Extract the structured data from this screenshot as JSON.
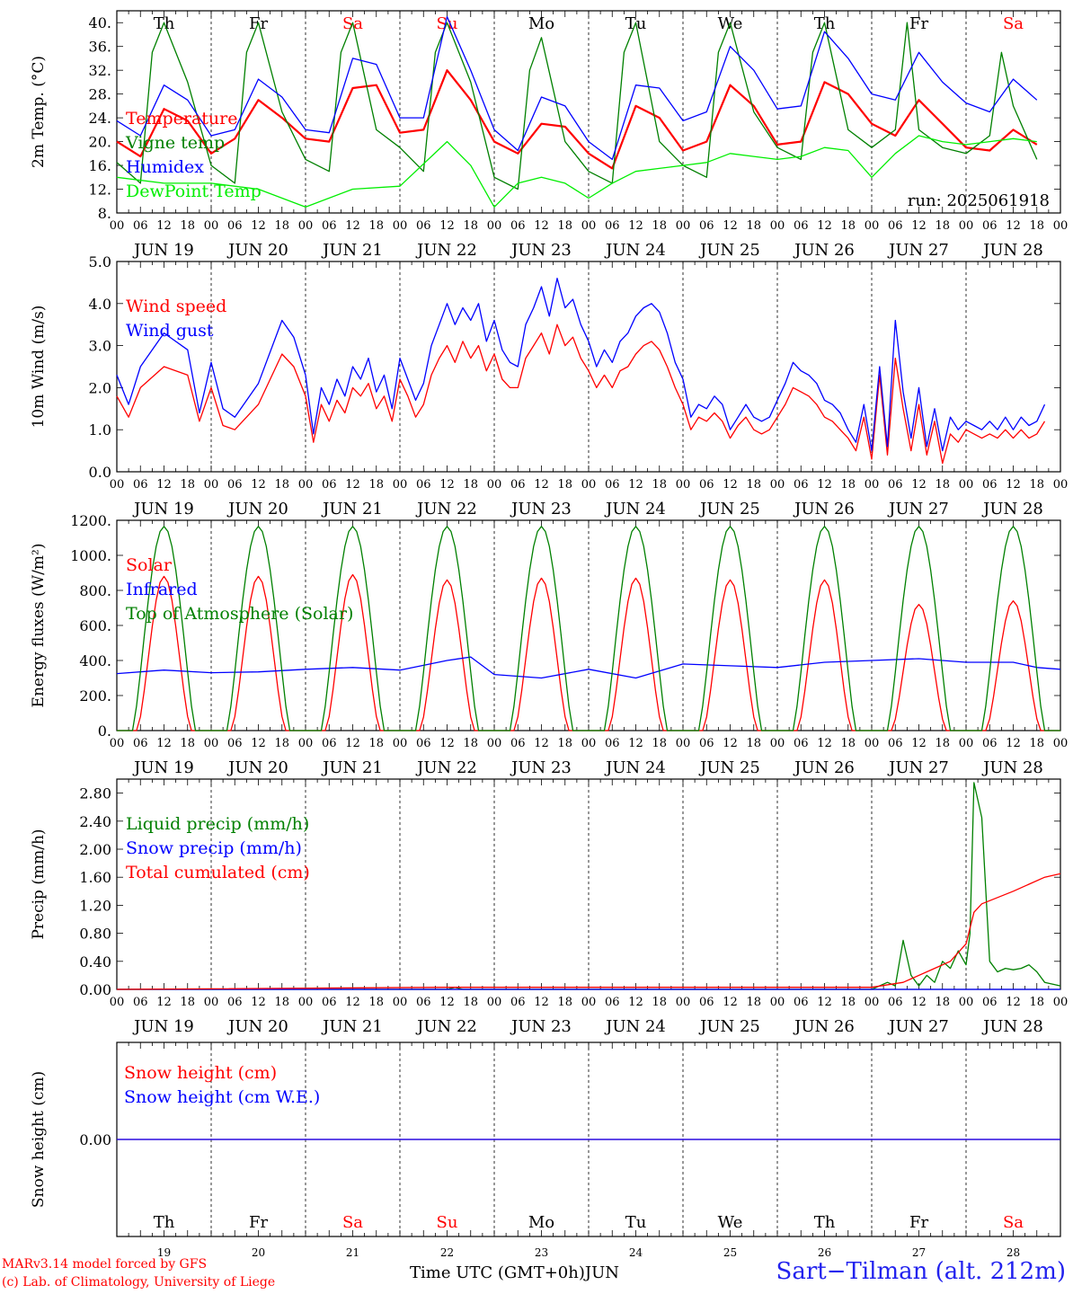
{
  "figure": {
    "days": [
      "19",
      "20",
      "21",
      "22",
      "23",
      "24",
      "25",
      "26",
      "27",
      "28"
    ],
    "month": "JUN",
    "weekdays": [
      "Th",
      "Fr",
      "Sa",
      "Su",
      "Mo",
      "Tu",
      "We",
      "Th",
      "Fr",
      "Sa"
    ],
    "weekday_colors": [
      "#000000",
      "#000000",
      "#ff0000",
      "#ff0000",
      "#000000",
      "#000000",
      "#000000",
      "#000000",
      "#000000",
      "#ff0000"
    ],
    "hour_ticks": [
      "00",
      "06",
      "12",
      "18"
    ],
    "final_tick": "00",
    "run_label": "run: 2025061918",
    "xlabel": "Time UTC (GMT+0h)",
    "xlabel_unit": "JUN",
    "model_note": "MARv3.14 model forced by GFS",
    "credit": "(c) Lab. of Climatology, University of Liege",
    "station": "Sart−Tilman (alt. 212m)"
  },
  "chart_data": [
    {
      "type": "line",
      "ylabel": "2m Temp. (°C)",
      "ylim": [
        8,
        42
      ],
      "yticks": [
        "8.",
        "12.",
        "16.",
        "20.",
        "24.",
        "28.",
        "32.",
        "36.",
        "40."
      ],
      "legend_placement": "left",
      "series": [
        {
          "name": "Temperature",
          "color": "#ff0000",
          "x": [
            0,
            6,
            12,
            18,
            24,
            30,
            36,
            42,
            48,
            54,
            60,
            66,
            72,
            78,
            84,
            90,
            96,
            102,
            108,
            114,
            120,
            126,
            132,
            138,
            144,
            150,
            156,
            162,
            168,
            174,
            180,
            186,
            192,
            198,
            204,
            210,
            216,
            222,
            228,
            234
          ],
          "values": [
            20,
            17.5,
            25.5,
            23.5,
            18,
            20.5,
            27,
            24,
            20.5,
            20,
            29,
            29.5,
            21.5,
            22,
            32,
            27,
            20,
            18,
            23,
            22.5,
            18,
            15.5,
            26,
            24,
            18.5,
            20,
            29.5,
            26,
            19.5,
            20,
            30,
            28,
            23,
            21,
            27,
            23,
            19,
            18.5,
            22,
            19.5
          ]
        },
        {
          "name": "Vigne temp",
          "color": "#008000",
          "x": [
            0,
            6,
            9,
            12,
            18,
            24,
            30,
            33,
            36,
            42,
            48,
            54,
            57,
            60,
            66,
            72,
            78,
            81,
            84,
            90,
            96,
            102,
            105,
            108,
            114,
            120,
            126,
            129,
            132,
            138,
            144,
            150,
            153,
            156,
            162,
            168,
            174,
            177,
            180,
            186,
            192,
            198,
            201,
            204,
            210,
            216,
            222,
            225,
            228,
            234
          ],
          "values": [
            16.5,
            13,
            35,
            40,
            30,
            16,
            13,
            35,
            40,
            25,
            17,
            15,
            35,
            40,
            22,
            19,
            15,
            35,
            40,
            30,
            14,
            12,
            32,
            37.5,
            20,
            15,
            13,
            35,
            40,
            20,
            16,
            14,
            35,
            40,
            25,
            19,
            17,
            35,
            40,
            22,
            19,
            22,
            40,
            22,
            19,
            18,
            21,
            35,
            26,
            17
          ]
        },
        {
          "name": "Humidex",
          "color": "#0000ff",
          "x": [
            0,
            6,
            12,
            18,
            24,
            30,
            36,
            42,
            48,
            54,
            60,
            66,
            72,
            78,
            84,
            90,
            96,
            102,
            108,
            114,
            120,
            126,
            132,
            138,
            144,
            150,
            156,
            162,
            168,
            174,
            180,
            186,
            192,
            198,
            204,
            210,
            216,
            222,
            228,
            234
          ],
          "values": [
            23.5,
            21,
            29.5,
            27,
            21,
            22,
            30.5,
            27.5,
            22,
            21.5,
            34,
            33,
            24,
            24,
            41,
            32,
            22,
            18.5,
            27.5,
            26,
            20,
            17,
            29.5,
            29,
            23.5,
            25,
            36,
            32,
            25.5,
            26,
            38.5,
            34,
            28,
            27,
            35,
            30,
            26.5,
            25,
            30.5,
            27
          ]
        },
        {
          "name": "DewPoint Temp",
          "color": "#00ee00",
          "x": [
            0,
            12,
            24,
            36,
            48,
            60,
            72,
            84,
            90,
            96,
            102,
            108,
            114,
            120,
            126,
            132,
            138,
            144,
            150,
            156,
            162,
            168,
            174,
            180,
            186,
            192,
            198,
            204,
            210,
            216,
            222,
            228,
            234
          ],
          "values": [
            14,
            13,
            13,
            12,
            9,
            12,
            12.5,
            20,
            16,
            9,
            13,
            14,
            13,
            10.5,
            13,
            15,
            15.5,
            16,
            16.5,
            18,
            17.5,
            17,
            17.5,
            19,
            18.5,
            14,
            18,
            21,
            20,
            19.5,
            20,
            20.5,
            20
          ]
        }
      ]
    },
    {
      "type": "line",
      "ylabel": "10m Wind (m/s)",
      "ylim": [
        0,
        5
      ],
      "yticks": [
        "0.0",
        "1.0",
        "2.0",
        "3.0",
        "4.0",
        "5.0"
      ],
      "legend_placement": "left",
      "series": [
        {
          "name": "Wind speed",
          "color": "#ff0000",
          "x": [
            0,
            3,
            6,
            12,
            18,
            21,
            24,
            27,
            30,
            36,
            42,
            45,
            48,
            50,
            52,
            54,
            56,
            58,
            60,
            62,
            64,
            66,
            68,
            70,
            72,
            74,
            76,
            78,
            80,
            82,
            84,
            86,
            88,
            90,
            92,
            94,
            96,
            98,
            100,
            102,
            104,
            106,
            108,
            110,
            112,
            114,
            116,
            118,
            120,
            122,
            124,
            126,
            128,
            130,
            132,
            134,
            136,
            138,
            140,
            142,
            144,
            146,
            148,
            150,
            152,
            154,
            156,
            158,
            160,
            162,
            164,
            166,
            168,
            170,
            172,
            174,
            176,
            178,
            180,
            182,
            184,
            186,
            188,
            190,
            192,
            194,
            196,
            198,
            200,
            202,
            204,
            206,
            208,
            210,
            212,
            214,
            216,
            218,
            220,
            222,
            224,
            226,
            228,
            230,
            232,
            234,
            236
          ],
          "values": [
            1.8,
            1.3,
            2.0,
            2.5,
            2.3,
            1.2,
            2.0,
            1.1,
            1.0,
            1.6,
            2.8,
            2.5,
            1.8,
            0.7,
            1.6,
            1.2,
            1.7,
            1.4,
            2.0,
            1.8,
            2.1,
            1.5,
            1.8,
            1.2,
            2.2,
            1.8,
            1.3,
            1.6,
            2.3,
            2.7,
            3.0,
            2.6,
            3.1,
            2.7,
            3.0,
            2.4,
            2.8,
            2.2,
            2.0,
            2.0,
            2.7,
            3.0,
            3.3,
            2.8,
            3.5,
            3.0,
            3.2,
            2.7,
            2.4,
            2.0,
            2.3,
            2.0,
            2.4,
            2.5,
            2.8,
            3.0,
            3.1,
            2.9,
            2.5,
            2.0,
            1.6,
            1.0,
            1.3,
            1.2,
            1.4,
            1.2,
            0.8,
            1.1,
            1.3,
            1.0,
            0.9,
            1.0,
            1.3,
            1.6,
            2.0,
            1.9,
            1.8,
            1.6,
            1.3,
            1.2,
            1.0,
            0.8,
            0.5,
            1.3,
            0.3,
            2.3,
            0.4,
            2.7,
            1.5,
            0.5,
            1.6,
            0.4,
            1.2,
            0.2,
            0.9,
            0.7,
            1.0,
            0.9,
            0.8,
            0.9,
            0.8,
            1.0,
            0.8,
            1.0,
            0.8,
            0.9,
            1.2
          ]
        },
        {
          "name": "Wind gust",
          "color": "#0000ff",
          "x": [
            0,
            3,
            6,
            12,
            18,
            21,
            24,
            27,
            30,
            36,
            42,
            45,
            48,
            50,
            52,
            54,
            56,
            58,
            60,
            62,
            64,
            66,
            68,
            70,
            72,
            74,
            76,
            78,
            80,
            82,
            84,
            86,
            88,
            90,
            92,
            94,
            96,
            98,
            100,
            102,
            104,
            106,
            108,
            110,
            112,
            114,
            116,
            118,
            120,
            122,
            124,
            126,
            128,
            130,
            132,
            134,
            136,
            138,
            140,
            142,
            144,
            146,
            148,
            150,
            152,
            154,
            156,
            158,
            160,
            162,
            164,
            166,
            168,
            170,
            172,
            174,
            176,
            178,
            180,
            182,
            184,
            186,
            188,
            190,
            192,
            194,
            196,
            198,
            200,
            202,
            204,
            206,
            208,
            210,
            212,
            214,
            216,
            218,
            220,
            222,
            224,
            226,
            228,
            230,
            232,
            234,
            236
          ],
          "values": [
            2.3,
            1.6,
            2.5,
            3.3,
            2.9,
            1.4,
            2.6,
            1.5,
            1.3,
            2.1,
            3.6,
            3.2,
            2.3,
            0.9,
            2.0,
            1.6,
            2.2,
            1.8,
            2.5,
            2.2,
            2.7,
            1.9,
            2.3,
            1.5,
            2.7,
            2.2,
            1.7,
            2.1,
            3.0,
            3.5,
            4.0,
            3.5,
            3.9,
            3.6,
            4.0,
            3.1,
            3.6,
            2.9,
            2.6,
            2.5,
            3.5,
            3.9,
            4.4,
            3.7,
            4.6,
            3.9,
            4.1,
            3.5,
            3.1,
            2.5,
            2.9,
            2.6,
            3.1,
            3.3,
            3.7,
            3.9,
            4.0,
            3.8,
            3.3,
            2.6,
            2.2,
            1.3,
            1.6,
            1.5,
            1.8,
            1.6,
            1.0,
            1.3,
            1.6,
            1.3,
            1.2,
            1.3,
            1.7,
            2.1,
            2.6,
            2.4,
            2.3,
            2.1,
            1.7,
            1.6,
            1.4,
            1.0,
            0.7,
            1.6,
            0.5,
            2.5,
            0.6,
            3.6,
            1.9,
            0.8,
            2.0,
            0.6,
            1.5,
            0.5,
            1.3,
            1.0,
            1.2,
            1.1,
            1.0,
            1.2,
            1.0,
            1.3,
            1.0,
            1.3,
            1.1,
            1.2,
            1.6
          ]
        }
      ]
    },
    {
      "type": "line",
      "ylabel": "Energy fluxes (W/m²)",
      "ylim": [
        0,
        1200
      ],
      "yticks": [
        "0.",
        "200.",
        "400.",
        "600.",
        "800.",
        "1000.",
        "1200."
      ],
      "legend_placement": "left",
      "series": [
        {
          "name": "Solar",
          "color": "#ff0000",
          "peaks": [
            880,
            880,
            890,
            860,
            870,
            870,
            860,
            860,
            720,
            740
          ]
        },
        {
          "name": "Infrared",
          "color": "#0000ff",
          "x": [
            0,
            12,
            24,
            36,
            48,
            60,
            72,
            84,
            90,
            96,
            108,
            120,
            132,
            144,
            156,
            168,
            180,
            192,
            204,
            216,
            228,
            234,
            240
          ],
          "values": [
            325,
            345,
            330,
            335,
            350,
            360,
            345,
            400,
            420,
            320,
            300,
            350,
            300,
            380,
            370,
            360,
            390,
            400,
            410,
            390,
            390,
            360,
            350
          ]
        },
        {
          "name": "Top of Atmosphere (Solar)",
          "color": "#008000",
          "peak": 1165,
          "daylight_hours": [
            4,
            20
          ]
        }
      ]
    },
    {
      "type": "line",
      "ylabel": "Precip (mm/h)",
      "ylim": [
        0,
        3.0
      ],
      "yticks": [
        "0.00",
        "0.40",
        "0.80",
        "1.20",
        "1.60",
        "2.00",
        "2.40",
        "2.80"
      ],
      "legend_placement": "left",
      "series": [
        {
          "name": "Liquid precip (mm/h)",
          "color": "#008000",
          "x": [
            0,
            84,
            86,
            88,
            120,
            192,
            196,
            198,
            200,
            202,
            204,
            206,
            208,
            210,
            212,
            214,
            216,
            217,
            218,
            220,
            222,
            224,
            226,
            228,
            230,
            232,
            234,
            236,
            240
          ],
          "values": [
            0,
            0,
            0.03,
            0,
            0,
            0,
            0.1,
            0.05,
            0.7,
            0.2,
            0.05,
            0.2,
            0.1,
            0.4,
            0.3,
            0.55,
            0.35,
            0.8,
            2.95,
            2.45,
            0.4,
            0.25,
            0.3,
            0.28,
            0.3,
            0.35,
            0.25,
            0.1,
            0.05
          ]
        },
        {
          "name": "Snow precip (mm/h)",
          "color": "#0000ff",
          "x": [
            0,
            240
          ],
          "values": [
            0,
            0
          ]
        },
        {
          "name": "Total cumulated (cm)",
          "color": "#ff0000",
          "x": [
            0,
            84,
            192,
            200,
            208,
            212,
            216,
            218,
            220,
            228,
            236,
            240
          ],
          "values": [
            0,
            0.03,
            0.03,
            0.1,
            0.3,
            0.4,
            0.65,
            1.1,
            1.22,
            1.4,
            1.6,
            1.65
          ]
        }
      ]
    },
    {
      "type": "line",
      "ylabel": "Snow height (cm)",
      "ylim": [
        -1,
        1
      ],
      "yticks": [
        "0.00"
      ],
      "legend_placement": "left",
      "series": [
        {
          "name": "Snow height (cm)",
          "color": "#ff0000",
          "x": [
            0,
            240
          ],
          "values": [
            0,
            0
          ]
        },
        {
          "name": "Snow height (cm W.E.)",
          "color": "#0000ff",
          "x": [
            0,
            240
          ],
          "values": [
            0,
            0
          ]
        }
      ]
    }
  ]
}
